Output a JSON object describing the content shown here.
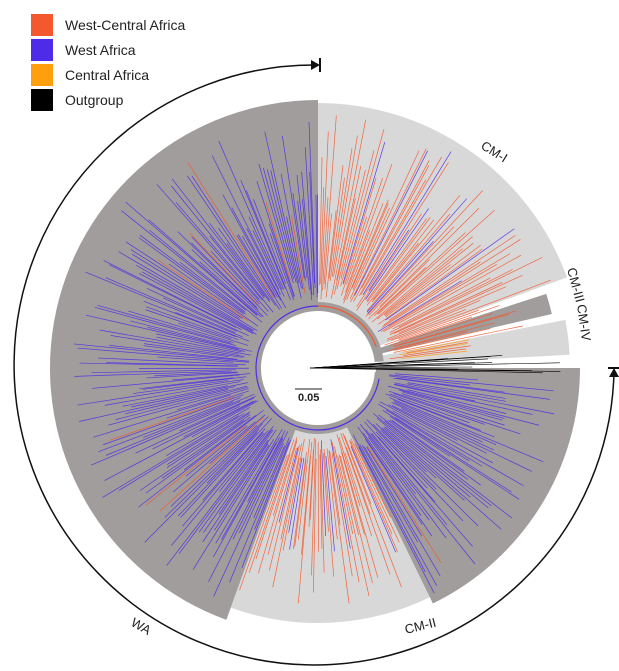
{
  "legend": {
    "items": [
      {
        "label": "West-Central Africa",
        "color": "#F4582E"
      },
      {
        "label": "West Africa",
        "color": "#4E2BE8"
      },
      {
        "label": "Central Africa",
        "color": "#FF9F0D"
      },
      {
        "label": "Outgroup",
        "color": "#000000"
      }
    ]
  },
  "clades": {
    "cm1": "CM-I",
    "cm2": "CM-II",
    "cm3": "CM-III",
    "cm4": "CM-IV",
    "wa": "WA"
  },
  "scale_bar": "0.05",
  "colors": {
    "dark_sector": "#A19D9C",
    "light_sector": "#D8D8D8",
    "west_central": "#F4582E",
    "west": "#4E2BE8",
    "central": "#FF9F0D",
    "outgroup": "#000000"
  }
}
